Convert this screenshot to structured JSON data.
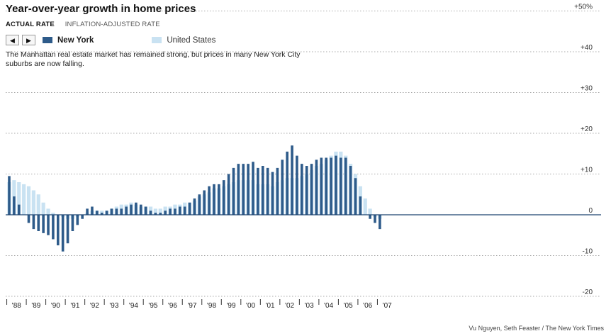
{
  "title": "Year-over-year growth in home prices",
  "tabs": {
    "actual": "ACTUAL RATE",
    "inflation": "INFLATION-ADJUSTED RATE"
  },
  "nav": {
    "prev": "◀",
    "next": "▶"
  },
  "description": "The Manhattan real estate market has remained strong, but prices in many New York City suburbs are now falling.",
  "credit": "Vu Nguyen, Seth Feaster / The New York Times",
  "colors": {
    "new_york": "#2e5b8a",
    "united_states": "#c9e2f2",
    "gridline": "#8c8c8c"
  },
  "chart_data": {
    "type": "bar",
    "title": "Year-over-year growth in home prices",
    "xlabel": "",
    "ylabel": "",
    "ylim": [
      -22,
      52
    ],
    "yticks": [
      50,
      40,
      30,
      20,
      10,
      0,
      -10,
      -20
    ],
    "ytick_labels": [
      "+50%",
      "+40",
      "+30",
      "+20",
      "+10",
      "0",
      "-10",
      "-20"
    ],
    "year_labels": [
      "'88",
      "'89",
      "'90",
      "'91",
      "'92",
      "'93",
      "'94",
      "'95",
      "'96",
      "'97",
      "'98",
      "'99",
      "'00",
      "'01",
      "'02",
      "'03",
      "'04",
      "'05",
      "'06",
      "'07"
    ],
    "bars_per_year": 4,
    "grid": true,
    "legend": "top-left",
    "series": [
      {
        "name": "New York",
        "values": [
          9.5,
          4.5,
          2.5,
          0,
          -2,
          -3.5,
          -4,
          -4.5,
          -5,
          -6,
          -7.5,
          -9,
          -7,
          -4,
          -2.5,
          -1,
          1.5,
          2,
          1,
          0.5,
          1,
          1.5,
          1.5,
          1.5,
          2,
          2.5,
          3,
          2.5,
          2,
          1,
          0.5,
          0.5,
          1,
          1.5,
          1.5,
          2,
          2,
          3,
          4,
          5,
          6,
          7,
          7.5,
          7.5,
          8.5,
          10,
          11.5,
          12.5,
          12.5,
          12.5,
          13,
          11.5,
          12,
          11.5,
          10.5,
          11.5,
          13.5,
          15.5,
          17,
          14.5,
          12.5,
          12,
          12.5,
          13.5,
          14,
          14,
          14,
          14.5,
          14,
          14,
          12,
          9,
          4.5,
          0,
          -1,
          -2,
          -3.5
        ]
      },
      {
        "name": "United States",
        "values": [
          8,
          8.5,
          8,
          7.5,
          7,
          6,
          5,
          3,
          1.5,
          0.5,
          0,
          -0.5,
          -1,
          -1,
          -0.5,
          0,
          0.5,
          1,
          1,
          1,
          1,
          1.5,
          2,
          2.5,
          2.5,
          3,
          2.5,
          2,
          2,
          2,
          1.5,
          1.5,
          2,
          2,
          2.5,
          2.5,
          3,
          3,
          3.5,
          4.5,
          5,
          5.5,
          6.5,
          6.5,
          7,
          7.5,
          8,
          8.5,
          8.5,
          8.5,
          8.5,
          7.5,
          7.5,
          7.5,
          7,
          8,
          8.5,
          9,
          9,
          9,
          9.5,
          10,
          11,
          12,
          12.5,
          13.5,
          14.5,
          15.5,
          15.5,
          14.5,
          12.5,
          10,
          7,
          4,
          1.5,
          -0.5,
          -1
        ]
      }
    ]
  }
}
